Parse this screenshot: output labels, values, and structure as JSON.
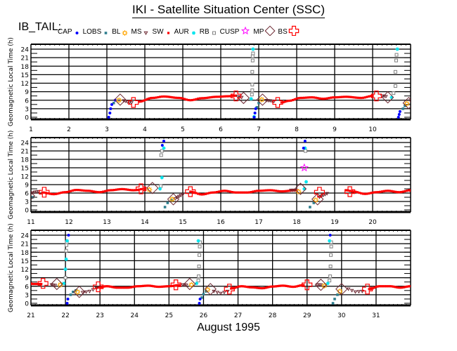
{
  "title": "IKI - Satellite Situation Center (SSC)",
  "satellite": "IB_TAIL:",
  "legend": [
    {
      "label": "CAP",
      "marker": "dot",
      "color": "#0000ff"
    },
    {
      "label": "LOBS",
      "marker": "square",
      "color": "#2f7f8f"
    },
    {
      "label": "BL",
      "marker": "sun",
      "color": "#ffa500"
    },
    {
      "label": "MS",
      "marker": "triangle-down",
      "color": "#6b2630"
    },
    {
      "label": "SW",
      "marker": "burst",
      "color": "#ff0000"
    },
    {
      "label": "AUR",
      "marker": "asterisk",
      "color": "#00e5ee"
    },
    {
      "label": "RB",
      "marker": "open-square",
      "color": "#808080"
    },
    {
      "label": "CUSP",
      "marker": "star",
      "color": "#ff00ff"
    },
    {
      "label": "MP",
      "marker": "diamond",
      "color": "#6b2630"
    },
    {
      "label": "BS",
      "marker": "cross",
      "color": "#ff0000"
    }
  ],
  "chart_data": {
    "type": "scatter",
    "title": "IKI - Satellite Situation Center (SSC)",
    "xlabel": "August    1995",
    "ylabel": "Geomagnetic Local Time (h)",
    "ylim": [
      0,
      24
    ],
    "yticks": [
      0,
      3,
      6,
      9,
      12,
      15,
      18,
      21,
      24
    ],
    "grid": true,
    "panels": [
      {
        "xlim": [
          1,
          11
        ],
        "xticks": [
          1,
          2,
          3,
          4,
          5,
          6,
          7,
          8,
          9,
          10
        ]
      },
      {
        "xlim": [
          11,
          21
        ],
        "xticks": [
          11,
          12,
          13,
          14,
          15,
          16,
          17,
          18,
          19,
          20
        ]
      },
      {
        "xlim": [
          21,
          32
        ],
        "xticks": [
          21,
          22,
          23,
          24,
          25,
          26,
          27,
          28,
          29,
          30,
          31
        ]
      }
    ],
    "series": [
      {
        "name": "CAP",
        "marker": "dot",
        "color": "#0000ff",
        "points": [
          [
            3.05,
            0
          ],
          [
            3.08,
            1.5
          ],
          [
            3.1,
            3
          ],
          [
            3.13,
            4.5
          ],
          [
            3.22,
            6
          ],
          [
            6.88,
            0
          ],
          [
            6.9,
            1.5
          ],
          [
            6.92,
            3
          ],
          [
            10.68,
            0
          ],
          [
            10.7,
            1
          ],
          [
            10.72,
            2
          ],
          [
            14.46,
            23
          ],
          [
            14.5,
            24.5
          ],
          [
            18.18,
            22
          ],
          [
            18.22,
            24.5
          ],
          [
            22.05,
            0
          ],
          [
            22.07,
            1.5
          ],
          [
            22.09,
            24
          ],
          [
            25.88,
            0
          ],
          [
            25.9,
            1.5
          ],
          [
            29.67,
            24
          ]
        ]
      },
      {
        "name": "LOBS",
        "marker": "square",
        "color": "#2f7f8f",
        "points": [
          [
            3.18,
            5
          ],
          [
            6.95,
            3.5
          ],
          [
            7.0,
            5
          ],
          [
            10.8,
            3
          ],
          [
            10.85,
            4
          ],
          [
            14.53,
            1
          ],
          [
            14.6,
            2.5
          ],
          [
            14.7,
            3.5
          ],
          [
            11.05,
            4.5
          ],
          [
            18.35,
            1
          ],
          [
            18.45,
            2.5
          ],
          [
            22.15,
            3
          ],
          [
            22.22,
            4
          ],
          [
            22.3,
            4.5
          ],
          [
            25.95,
            2
          ],
          [
            26.0,
            3.2
          ],
          [
            26.07,
            4.2
          ],
          [
            29.75,
            0
          ],
          [
            29.8,
            1.5
          ],
          [
            29.88,
            3
          ]
        ]
      },
      {
        "name": "BL",
        "marker": "sun",
        "color": "#ffa500",
        "points": [
          [
            3.32,
            6
          ],
          [
            7.08,
            6.2
          ],
          [
            10.9,
            4.8
          ],
          [
            14.72,
            3.8
          ],
          [
            18.5,
            3.5
          ],
          [
            22.35,
            4
          ],
          [
            26.12,
            4.8
          ],
          [
            29.95,
            4.2
          ],
          [
            14.12,
            7.2
          ],
          [
            18.05,
            6.5
          ],
          [
            21.85,
            6.5
          ],
          [
            25.65,
            6.5
          ],
          [
            29.5,
            6.2
          ]
        ]
      },
      {
        "name": "MS",
        "marker": "triangle-down",
        "color": "#6b2630",
        "points": [
          [
            3.45,
            5.8
          ],
          [
            3.55,
            5.4
          ],
          [
            3.65,
            5.1
          ],
          [
            6.45,
            7.2
          ],
          [
            6.55,
            7
          ],
          [
            7.2,
            5.9
          ],
          [
            7.3,
            5.8
          ],
          [
            7.4,
            5.6
          ],
          [
            10.25,
            7.5
          ],
          [
            10.35,
            7.3
          ],
          [
            11.0,
            5.8
          ],
          [
            11.1,
            6.3
          ],
          [
            11.2,
            6.5
          ],
          [
            14.8,
            4
          ],
          [
            14.9,
            4.8
          ],
          [
            15.0,
            5.5
          ],
          [
            17.85,
            7
          ],
          [
            17.95,
            7
          ],
          [
            18.6,
            4.5
          ],
          [
            18.7,
            5.2
          ],
          [
            18.8,
            5.8
          ],
          [
            21.6,
            6.5
          ],
          [
            21.7,
            6.3
          ],
          [
            22.5,
            3.8
          ],
          [
            22.7,
            4.2
          ],
          [
            22.9,
            5.3
          ],
          [
            25.4,
            6.5
          ],
          [
            25.5,
            6.4
          ],
          [
            26.3,
            4.2
          ],
          [
            26.5,
            3.5
          ],
          [
            26.7,
            4.2
          ],
          [
            29.3,
            6.5
          ],
          [
            29.4,
            6.5
          ],
          [
            30.2,
            5
          ],
          [
            30.4,
            4
          ],
          [
            30.6,
            4.2
          ]
        ]
      },
      {
        "name": "SW",
        "marker": "burst",
        "color": "#ff0000",
        "points": [
          [
            3.85,
            5.5
          ],
          [
            4.2,
            6.8
          ],
          [
            4.5,
            7.3
          ],
          [
            4.9,
            6.8
          ],
          [
            5.2,
            6
          ],
          [
            5.5,
            6.7
          ],
          [
            5.9,
            7.2
          ],
          [
            6.2,
            7.4
          ],
          [
            6.4,
            7.6
          ],
          [
            7.6,
            5.2
          ],
          [
            7.8,
            5.8
          ],
          [
            8.1,
            6.8
          ],
          [
            8.4,
            7
          ],
          [
            8.7,
            6.5
          ],
          [
            9.0,
            7
          ],
          [
            9.3,
            7.2
          ],
          [
            9.7,
            6.8
          ],
          [
            10.0,
            7.5
          ],
          [
            11.3,
            6.2
          ],
          [
            11.6,
            5.6
          ],
          [
            11.9,
            6.3
          ],
          [
            12.2,
            7.1
          ],
          [
            12.5,
            6.8
          ],
          [
            12.8,
            6.3
          ],
          [
            13.1,
            7
          ],
          [
            13.4,
            7.4
          ],
          [
            13.7,
            7
          ],
          [
            14.0,
            7.5
          ],
          [
            15.2,
            6.5
          ],
          [
            15.5,
            5.5
          ],
          [
            15.8,
            6.2
          ],
          [
            16.1,
            6.8
          ],
          [
            16.4,
            6.2
          ],
          [
            16.7,
            6.2
          ],
          [
            17.0,
            6.8
          ],
          [
            17.3,
            7
          ],
          [
            17.6,
            6.6
          ],
          [
            18.0,
            7
          ],
          [
            19.3,
            7
          ],
          [
            19.5,
            6.5
          ],
          [
            19.8,
            5.7
          ],
          [
            20.1,
            6.3
          ],
          [
            20.4,
            6.8
          ],
          [
            20.7,
            6.3
          ],
          [
            21.0,
            7
          ],
          [
            21.0,
            6.8
          ],
          [
            21.3,
            6.8
          ],
          [
            22.9,
            5.5
          ],
          [
            23.2,
            6
          ],
          [
            23.5,
            5.5
          ],
          [
            23.8,
            5.5
          ],
          [
            24.1,
            6
          ],
          [
            24.4,
            6.2
          ],
          [
            24.7,
            5.8
          ],
          [
            25.0,
            6
          ],
          [
            25.3,
            6.4
          ],
          [
            26.8,
            5.2
          ],
          [
            27.1,
            6
          ],
          [
            27.4,
            5.6
          ],
          [
            27.7,
            5.3
          ],
          [
            28.0,
            5.9
          ],
          [
            28.3,
            6.2
          ],
          [
            28.6,
            5.8
          ],
          [
            28.9,
            6.4
          ],
          [
            30.8,
            5
          ],
          [
            31.1,
            6
          ],
          [
            31.4,
            6
          ],
          [
            31.7,
            5.5
          ],
          [
            32.0,
            6
          ]
        ]
      },
      {
        "name": "AUR",
        "marker": "asterisk",
        "color": "#00e5ee",
        "points": [
          [
            6.8,
            6.5
          ],
          [
            6.85,
            24
          ],
          [
            6.88,
            0.2
          ],
          [
            10.5,
            7
          ],
          [
            10.65,
            24
          ],
          [
            14.4,
            7.5
          ],
          [
            14.45,
            11.5
          ],
          [
            14.5,
            22
          ],
          [
            18.2,
            7.5
          ],
          [
            18.25,
            10
          ],
          [
            18.22,
            22
          ],
          [
            21.95,
            7
          ],
          [
            22.0,
            12
          ],
          [
            22.02,
            15.5
          ],
          [
            22.05,
            22
          ],
          [
            25.8,
            7
          ],
          [
            25.85,
            22
          ],
          [
            29.6,
            7
          ],
          [
            29.65,
            22
          ]
        ]
      },
      {
        "name": "RB",
        "marker": "open-square",
        "color": "#808080",
        "points": [
          [
            6.82,
            8
          ],
          [
            6.83,
            9.5
          ],
          [
            6.83,
            11.5
          ],
          [
            6.83,
            16
          ],
          [
            6.84,
            20
          ],
          [
            6.84,
            21.5
          ],
          [
            6.85,
            22.5
          ],
          [
            10.55,
            8.5
          ],
          [
            10.6,
            11
          ],
          [
            10.6,
            16
          ],
          [
            10.62,
            20
          ],
          [
            10.63,
            22
          ],
          [
            14.42,
            8.5
          ],
          [
            14.43,
            19.5
          ],
          [
            14.45,
            21
          ],
          [
            18.23,
            21
          ],
          [
            22.0,
            9
          ],
          [
            22.02,
            18.5
          ],
          [
            22.03,
            20.5
          ],
          [
            22.04,
            21.5
          ],
          [
            25.85,
            8
          ],
          [
            25.86,
            9.5
          ],
          [
            25.87,
            13
          ],
          [
            25.88,
            17
          ],
          [
            25.89,
            20
          ],
          [
            25.9,
            21.5
          ],
          [
            29.65,
            8
          ],
          [
            29.67,
            9.5
          ],
          [
            29.68,
            13
          ],
          [
            29.69,
            17
          ],
          [
            29.7,
            20
          ],
          [
            29.7,
            21.5
          ]
        ]
      },
      {
        "name": "CUSP",
        "marker": "star",
        "color": "#ff00ff",
        "points": [
          [
            18.2,
            15
          ]
        ]
      },
      {
        "name": "MP",
        "marker": "diamond",
        "color": "#6b2630",
        "points": [
          [
            3.35,
            6.2
          ],
          [
            6.6,
            6.8
          ],
          [
            7.1,
            6.2
          ],
          [
            10.4,
            7
          ],
          [
            10.95,
            5
          ],
          [
            14.2,
            7.8
          ],
          [
            14.75,
            3.8
          ],
          [
            18.1,
            7.5
          ],
          [
            18.55,
            3.8
          ],
          [
            21.75,
            6.8
          ],
          [
            22.4,
            4
          ],
          [
            25.6,
            6.8
          ],
          [
            26.2,
            5
          ],
          [
            29.4,
            6.5
          ],
          [
            30.0,
            5
          ]
        ]
      },
      {
        "name": "BS",
        "marker": "cross",
        "color": "#ff0000",
        "points": [
          [
            3.7,
            5.2
          ],
          [
            6.4,
            7.5
          ],
          [
            7.5,
            5.2
          ],
          [
            10.1,
            7.5
          ],
          [
            11.35,
            6.3
          ],
          [
            13.9,
            7.5
          ],
          [
            15.2,
            6.5
          ],
          [
            18.6,
            6.3
          ],
          [
            19.4,
            6.5
          ],
          [
            21.35,
            7
          ],
          [
            22.95,
            5.8
          ],
          [
            25.2,
            6.5
          ],
          [
            26.75,
            5
          ],
          [
            29.0,
            6.5
          ],
          [
            30.75,
            5
          ]
        ]
      }
    ]
  }
}
